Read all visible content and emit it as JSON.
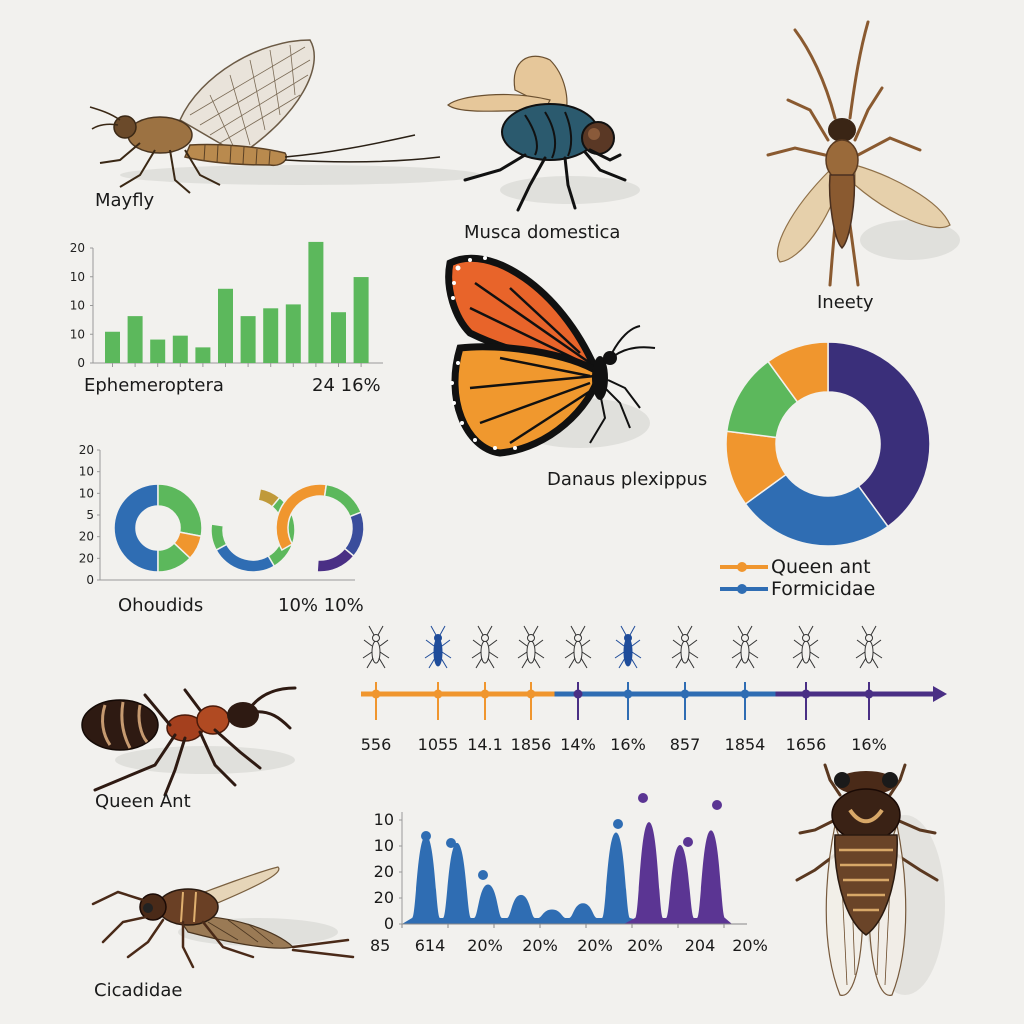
{
  "specimens": {
    "mayfly": {
      "label": "Mayfly"
    },
    "housefly": {
      "label": "Musca domestica"
    },
    "stonefly": {
      "label": "Ineety"
    },
    "monarch": {
      "label": "Danaus plexippus"
    },
    "queen_ant": {
      "label": "Queen Ant"
    },
    "cicada_side": {
      "label": "Cicadidae"
    },
    "cicada_top": {
      "label": ""
    }
  },
  "colors": {
    "green": "#5cb85c",
    "orange": "#f0962e",
    "blue": "#2f6db3",
    "purple": "#4a2f85",
    "background": "#f2f1ee"
  },
  "chart_data": [
    {
      "type": "bar",
      "title": "",
      "xlabel": "Ephemeroptera",
      "annotation": "24 16%",
      "yticks": [
        "0",
        "10",
        "10",
        "10",
        "20"
      ],
      "values": [
        4,
        6,
        3,
        3.5,
        2,
        9.5,
        6,
        7,
        7.5,
        15.5,
        6.5,
        11
      ],
      "color": "#5cb85c"
    },
    {
      "type": "pie",
      "title": "",
      "xlabel": "Ohoudids",
      "annotation": "10% 10%",
      "yticks": [
        "0",
        "20",
        "20",
        "5",
        "10",
        "10",
        "20"
      ],
      "donuts": [
        {
          "slices": [
            {
              "color": "#2f6db3",
              "value": 50
            },
            {
              "color": "#5cb85c",
              "value": 28
            },
            {
              "color": "#f0962e",
              "value": 9
            },
            {
              "color": "#5cb85c",
              "value": 13
            }
          ]
        },
        {
          "slices": [
            {
              "color": "#c09a3a",
              "value": 8
            },
            {
              "color": "#5cb85c",
              "value": 30
            },
            {
              "color": "#2f6db3",
              "value": 25
            },
            {
              "color": "#5cb85c",
              "value": 10
            }
          ]
        },
        {
          "slices": [
            {
              "color": "#f0962e",
              "value": 38
            },
            {
              "color": "#5cb85c",
              "value": 18
            },
            {
              "color": "#3a4d9c",
              "value": 18
            },
            {
              "color": "#4a2f85",
              "value": 16
            }
          ]
        }
      ]
    },
    {
      "type": "pie",
      "title": "",
      "legend": [
        {
          "label": "Queen ant",
          "color": "#f0962e"
        },
        {
          "label": "Formicidae",
          "color": "#2f6db3"
        }
      ],
      "slices": [
        {
          "color": "#3a2f7a",
          "value": 40
        },
        {
          "color": "#2f6db3",
          "value": 25
        },
        {
          "color": "#f0962e",
          "value": 12
        },
        {
          "color": "#5cb85c",
          "value": 13
        },
        {
          "color": "#f0962e",
          "value": 10
        }
      ]
    },
    {
      "type": "line",
      "title": "timeline",
      "tick_labels": [
        "556",
        "1055",
        "14.1",
        "1856",
        "14%",
        "16%",
        "857",
        "1854",
        "1656",
        "16%"
      ],
      "segments": [
        {
          "color": "#f0962e",
          "from": 0,
          "to": 4
        },
        {
          "color": "#2f6db3",
          "from": 4,
          "to": 8
        },
        {
          "color": "#4a2f85",
          "from": 8,
          "to": 10
        }
      ]
    },
    {
      "type": "area",
      "title": "",
      "yticks": [
        "0",
        "20",
        "20",
        "10",
        "10"
      ],
      "xticks": [
        "85",
        "614",
        "20%",
        "20%",
        "20%",
        "20%",
        "204",
        "20%"
      ],
      "series": [
        {
          "name": "blue",
          "color": "#2f6db3",
          "peaks": [
            0.85,
            0.78,
            0.38,
            0.28,
            0.14,
            0.2,
            0.88
          ]
        },
        {
          "name": "purple",
          "color": "#5b3593",
          "peaks": [
            0.98,
            0.76,
            0.9
          ]
        }
      ]
    }
  ]
}
